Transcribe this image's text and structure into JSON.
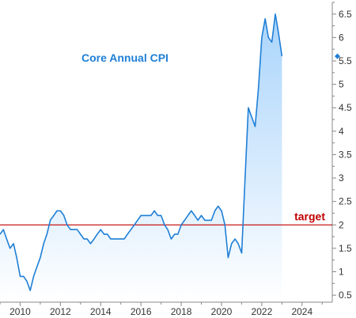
{
  "chart_data": {
    "type": "area",
    "title": "Core Annual CPI",
    "xlabel": "",
    "ylabel": "",
    "xlim": [
      2009.0,
      2025.5
    ],
    "ylim": [
      0.35,
      6.75
    ],
    "x_ticks": [
      2010,
      2012,
      2014,
      2016,
      2018,
      2020,
      2022,
      2024
    ],
    "x_tick_labels": [
      "2010",
      "2012",
      "2014",
      "2016",
      "2018",
      "2020",
      "2022",
      "2024"
    ],
    "y_ticks": [
      0.5,
      1,
      1.5,
      2,
      2.5,
      3,
      3.5,
      4,
      4.5,
      5,
      5.5,
      6,
      6.5
    ],
    "y_tick_labels": [
      "0.5",
      "1",
      "1.5",
      "2",
      "2.5",
      "3",
      "3.5",
      "4",
      "4.5",
      "5",
      "5.5",
      "6",
      "6.5"
    ],
    "grid": false,
    "legend": "none",
    "reference_line": {
      "y": 2,
      "label": "target",
      "color": "#c00000"
    },
    "last_value_marker": 5.6,
    "colors": {
      "line": "#1f7fd6",
      "fill_top": "#a9d4fb",
      "fill_bottom": "#ffffff",
      "target": "#c00000",
      "title": "#1f7fd6"
    },
    "series": [
      {
        "x": [
          2009.0,
          2009.17,
          2009.33,
          2009.5,
          2009.67,
          2009.83,
          2010.0,
          2010.17,
          2010.33,
          2010.5,
          2010.67,
          2010.83,
          2011.0,
          2011.17,
          2011.33,
          2011.5,
          2011.67,
          2011.83,
          2012.0,
          2012.17,
          2012.33,
          2012.5,
          2012.67,
          2012.83,
          2013.0,
          2013.17,
          2013.33,
          2013.5,
          2013.67,
          2013.83,
          2014.0,
          2014.17,
          2014.33,
          2014.5,
          2014.67,
          2014.83,
          2015.0,
          2015.17,
          2015.33,
          2015.5,
          2015.67,
          2015.83,
          2016.0,
          2016.17,
          2016.33,
          2016.5,
          2016.67,
          2016.83,
          2017.0,
          2017.17,
          2017.33,
          2017.5,
          2017.67,
          2017.83,
          2018.0,
          2018.17,
          2018.33,
          2018.5,
          2018.67,
          2018.83,
          2019.0,
          2019.17,
          2019.33,
          2019.5,
          2019.67,
          2019.83,
          2020.0,
          2020.17,
          2020.33,
          2020.5,
          2020.67,
          2020.83,
          2021.0,
          2021.17,
          2021.33,
          2021.5,
          2021.67,
          2021.83,
          2022.0,
          2022.17,
          2022.33,
          2022.5,
          2022.67,
          2022.83,
          2023.0
        ],
        "values": [
          1.8,
          1.9,
          1.7,
          1.5,
          1.6,
          1.3,
          0.9,
          0.9,
          0.8,
          0.6,
          0.9,
          1.1,
          1.3,
          1.6,
          1.8,
          2.1,
          2.2,
          2.3,
          2.3,
          2.2,
          2.0,
          1.9,
          1.9,
          1.9,
          1.8,
          1.7,
          1.7,
          1.6,
          1.7,
          1.8,
          1.9,
          1.8,
          1.8,
          1.7,
          1.7,
          1.7,
          1.7,
          1.7,
          1.8,
          1.9,
          2.0,
          2.1,
          2.2,
          2.2,
          2.2,
          2.2,
          2.3,
          2.2,
          2.2,
          2.0,
          1.9,
          1.7,
          1.8,
          1.8,
          2.0,
          2.1,
          2.2,
          2.3,
          2.2,
          2.1,
          2.2,
          2.1,
          2.1,
          2.1,
          2.3,
          2.4,
          2.3,
          2.0,
          1.3,
          1.6,
          1.7,
          1.6,
          1.4,
          3.0,
          4.5,
          4.3,
          4.1,
          4.9,
          6.0,
          6.4,
          6.0,
          5.9,
          6.5,
          6.1,
          5.6
        ]
      }
    ]
  }
}
